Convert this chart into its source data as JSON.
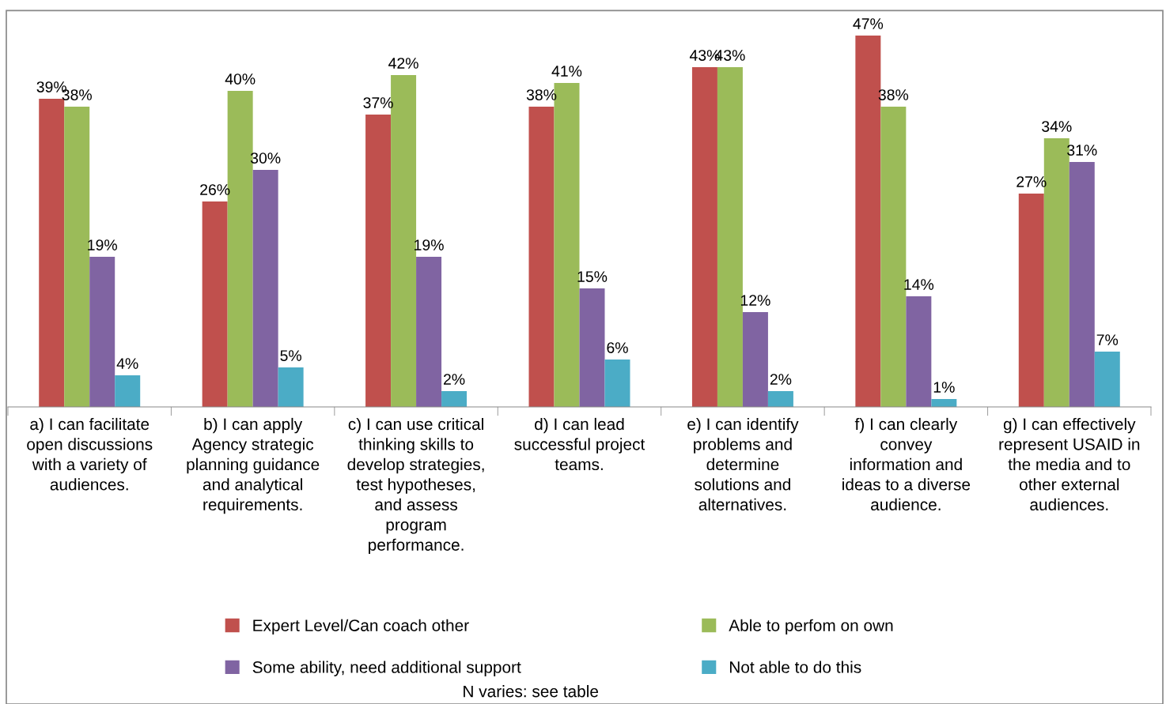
{
  "chart_data": {
    "type": "bar",
    "categories": [
      "a) I can facilitate\nopen discussions\nwith a variety of\naudiences.",
      "b) I can apply\nAgency strategic\nplanning guidance\nand analytical\nrequirements.",
      "c) I can use critical\nthinking skills to\ndevelop strategies,\ntest hypotheses,\nand assess\nprogram\nperformance.",
      "d) I can lead\nsuccessful project\nteams.",
      "e) I can identify\nproblems and\ndetermine\nsolutions and\nalternatives.",
      "f) I can clearly\nconvey\ninformation and\nideas to a diverse\naudience.",
      "g) I can effectively\nrepresent USAID in\nthe media and to\nother external\naudiences."
    ],
    "series": [
      {
        "name": "Expert Level/Can coach other",
        "color": "#c0504d",
        "values": [
          39,
          26,
          37,
          38,
          43,
          47,
          27
        ],
        "value_labels": [
          "39%",
          "26%",
          "37%",
          "38%",
          "43%",
          "47%",
          "27%"
        ]
      },
      {
        "name": "Able to perfom on own",
        "color": "#9bbb59",
        "values": [
          38,
          40,
          42,
          41,
          43,
          38,
          34
        ],
        "value_labels": [
          "38%",
          "40%",
          "42%",
          "41%",
          "43%",
          "38%",
          "34%"
        ]
      },
      {
        "name": "Some ability, need additional support",
        "color": "#8064a2",
        "values": [
          19,
          30,
          19,
          15,
          12,
          14,
          31
        ],
        "value_labels": [
          "19%",
          "30%",
          "19%",
          "15%",
          "12%",
          "14%",
          "31%"
        ]
      },
      {
        "name": "Not able to do this",
        "color": "#4bacc6",
        "values": [
          4,
          5,
          2,
          6,
          2,
          1,
          7
        ],
        "value_labels": [
          "4%",
          "5%",
          "2%",
          "6%",
          "2%",
          "1%",
          "7%"
        ]
      }
    ],
    "legend": "bottom",
    "grid": false,
    "annotations": [
      "N varies: see table"
    ]
  }
}
